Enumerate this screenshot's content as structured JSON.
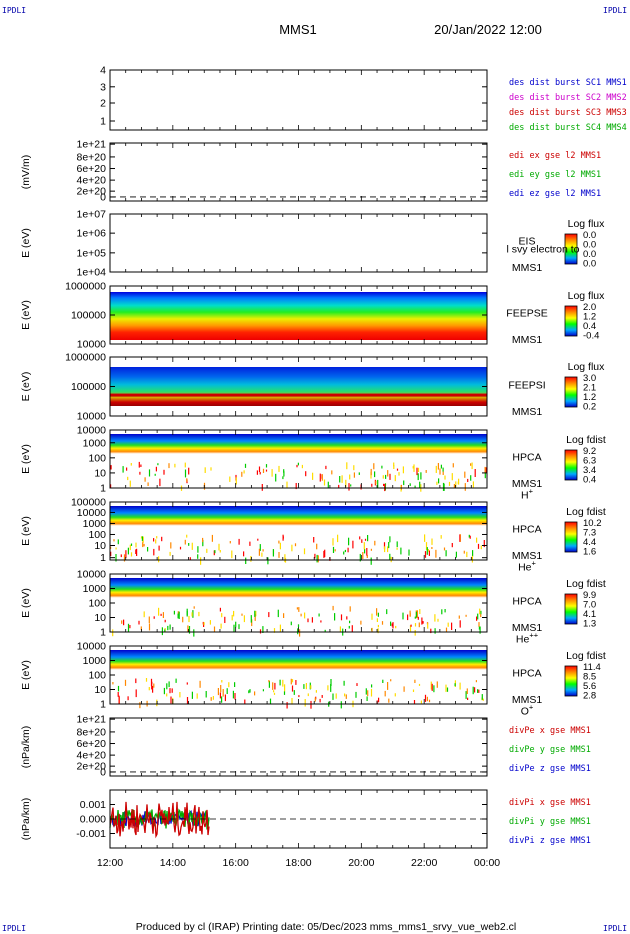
{
  "corner_label": "IPDLI",
  "header": {
    "title": "MMS1",
    "datetime": "20/Jan/2022 12:00"
  },
  "footer": "Produced by cl (IRAP)    Printing date: 05/Dec/2023    mms_mms1_srvy_vue_web2.cl",
  "chart_data": [
    {
      "type": "line",
      "panel": "spacecraft-position",
      "yticks": [
        "4",
        "3",
        "2",
        "1"
      ],
      "legend": [
        {
          "text": "des dist burst SC1 MMS1",
          "color": "#0000cc"
        },
        {
          "text": "des dist burst SC2 MMS2",
          "color": "#cc00cc"
        },
        {
          "text": "des dist burst SC3 MMS3",
          "color": "#cc0000"
        },
        {
          "text": "des dist burst SC4 MMS4",
          "color": "#00aa00"
        }
      ]
    },
    {
      "type": "line",
      "panel": "edi-electric-field",
      "ylabel": "(mV/m)",
      "yticks": [
        "1e+21",
        "8e+20",
        "6e+20",
        "4e+20",
        "2e+20",
        "0"
      ],
      "legend": [
        {
          "text": "edi ex gse l2 MMS1",
          "color": "#cc0000"
        },
        {
          "text": "edi ey gse l2 MMS1",
          "color": "#00aa00"
        },
        {
          "text": "edi ez gse l2 MMS1",
          "color": "#0000cc"
        }
      ]
    },
    {
      "type": "heatmap",
      "panel": "eis",
      "ylabel": "E (eV)",
      "yticks": [
        "1e+07",
        "1e+06",
        "1e+05",
        "1e+04"
      ],
      "instrument": "EIS",
      "instrument_extra": "l svy electron to",
      "sc": "MMS1",
      "colorbar_title": "Log flux",
      "colorbar_ticks": [
        "0.0",
        "0.0",
        "0.0",
        "0.0"
      ],
      "empty": true
    },
    {
      "type": "heatmap",
      "panel": "feeps-electron",
      "ylabel": "E (eV)",
      "yticks": [
        "1000000",
        "100000",
        "10000"
      ],
      "instrument": "FEEPSE",
      "sc": "MMS1",
      "colorbar_title": "Log flux",
      "colorbar_ticks": [
        "2.0",
        "1.2",
        "0.4",
        "-0.4"
      ]
    },
    {
      "type": "heatmap",
      "panel": "feeps-ion",
      "ylabel": "E (eV)",
      "yticks": [
        "1000000",
        "100000",
        "10000"
      ],
      "instrument": "FEEPSI",
      "sc": "MMS1",
      "colorbar_title": "Log flux",
      "colorbar_ticks": [
        "3.0",
        "2.1",
        "1.2",
        "0.2"
      ]
    },
    {
      "type": "heatmap",
      "panel": "hpca-h",
      "ylabel": "E (eV)",
      "yticks": [
        "10000",
        "1000",
        "100",
        "10",
        "1"
      ],
      "instrument": "HPCA",
      "sc": "MMS1",
      "species": "H",
      "charge": "+",
      "colorbar_title": "Log fdist",
      "colorbar_ticks": [
        "9.2",
        "6.3",
        "3.4",
        "0.4"
      ]
    },
    {
      "type": "heatmap",
      "panel": "hpca-he",
      "ylabel": "E (eV)",
      "yticks": [
        "100000",
        "10000",
        "1000",
        "100",
        "10",
        "1"
      ],
      "instrument": "HPCA",
      "sc": "MMS1",
      "species": "He",
      "charge": "+",
      "colorbar_title": "Log fdist",
      "colorbar_ticks": [
        "10.2",
        "7.3",
        "4.4",
        "1.6"
      ]
    },
    {
      "type": "heatmap",
      "panel": "hpca-he2",
      "ylabel": "E (eV)",
      "yticks": [
        "10000",
        "1000",
        "100",
        "10",
        "1"
      ],
      "instrument": "HPCA",
      "sc": "MMS1",
      "species": "He",
      "charge": "++",
      "colorbar_title": "Log fdist",
      "colorbar_ticks": [
        "9.9",
        "7.0",
        "4.1",
        "1.3"
      ]
    },
    {
      "type": "heatmap",
      "panel": "hpca-o",
      "ylabel": "E (eV)",
      "yticks": [
        "10000",
        "1000",
        "100",
        "10",
        "1"
      ],
      "instrument": "HPCA",
      "sc": "MMS1",
      "species": "O",
      "charge": "+",
      "colorbar_title": "Log fdist",
      "colorbar_ticks": [
        "11.4",
        "8.5",
        "5.6",
        "2.8"
      ]
    },
    {
      "type": "line",
      "panel": "divpe",
      "ylabel": "(nPa/km)",
      "yticks": [
        "1e+21",
        "8e+20",
        "6e+20",
        "4e+20",
        "2e+20",
        "0"
      ],
      "legend": [
        {
          "text": "divPe x gse MMS1",
          "color": "#cc0000"
        },
        {
          "text": "divPe y gse MMS1",
          "color": "#00aa00"
        },
        {
          "text": "divPe z gse MMS1",
          "color": "#0000cc"
        }
      ]
    },
    {
      "type": "line",
      "panel": "divpi",
      "ylabel": "(nPa/km)",
      "yticks": [
        "0.001",
        "0.000",
        "-0.001"
      ],
      "ylim": [
        -0.0015,
        0.0015
      ],
      "data_end": "15:10",
      "legend": [
        {
          "text": "divPi x gse MMS1",
          "color": "#cc0000"
        },
        {
          "text": "divPi y gse MMS1",
          "color": "#00aa00"
        },
        {
          "text": "divPi z gse MMS1",
          "color": "#0000cc"
        }
      ]
    }
  ],
  "xaxis": {
    "ticks": [
      "12:00",
      "14:00",
      "16:00",
      "18:00",
      "20:00",
      "22:00",
      "00:00"
    ]
  }
}
